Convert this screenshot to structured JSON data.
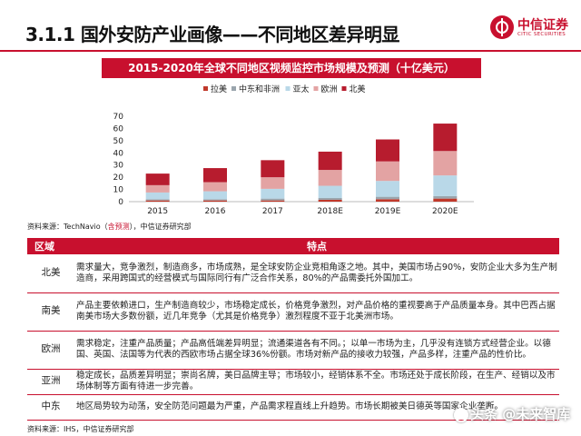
{
  "header": {
    "title": "3.1.1 国外安防产业画像——不同地区差异明显",
    "logo": {
      "name_cn": "中信证券",
      "name_en": "CITIC SECURITIES"
    },
    "accent_color": "#c8102e"
  },
  "chart_banner": "2015-2020年全球不同地区视频监控市场规模及预测（十亿美元）",
  "chart_data": {
    "type": "bar",
    "stacked": true,
    "title": "2015-2020年全球不同地区视频监控市场规模及预测（十亿美元）",
    "categories": [
      "2015",
      "2016",
      "2017",
      "2018E",
      "2019E",
      "2020E"
    ],
    "series": [
      {
        "name": "拉美",
        "color": "#c0392b",
        "values": [
          1,
          1,
          1,
          1.5,
          2,
          2.5
        ]
      },
      {
        "name": "中东和非洲",
        "color": "#9aa5ad",
        "values": [
          1,
          1,
          1.5,
          1.5,
          2,
          2
        ]
      },
      {
        "name": "亚太",
        "color": "#b9d8e8",
        "values": [
          5.5,
          6.5,
          8,
          10,
          13,
          17
        ]
      },
      {
        "name": "欧洲",
        "color": "#e3a3a3",
        "values": [
          6,
          7.5,
          9.5,
          13,
          16,
          20
        ]
      },
      {
        "name": "北美",
        "color": "#b71c2e",
        "values": [
          9.5,
          11.5,
          14,
          15,
          18,
          22.5
        ]
      }
    ],
    "yticks": [
      0,
      10,
      20,
      30,
      40,
      50,
      60,
      70
    ],
    "ylim": [
      0,
      70
    ],
    "legend": "top-left",
    "grid": false
  },
  "source1": {
    "prefix": "资料来源：TechNavio（",
    "highlight": "含预测",
    "suffix": "），中信证券研究部"
  },
  "table": {
    "headers": [
      "区域",
      "特点"
    ],
    "rows": [
      {
        "region": "北美",
        "text": "需求量大，竞争激烈，制造商多，市场成熟，是全球安防企业竞相角逐之地。其中，美国市场占90%，安防企业大多为生产制造商，采用跨国式的经营模式与国际同行有广泛合作关系，80%的产品需委托外国加工。"
      },
      {
        "region": "南美",
        "text": "产品主要依赖进口，生产制造商较少，市场稳定成长，价格竞争激烈，对产品价格的重视要高于产品质量本身。其中巴西占据南美市场大多数份额，近几年竞争（尤其是价格竞争）激烈程度不亚于北美洲市场。"
      },
      {
        "region": "欧洲",
        "text": "需求稳定，注重产品质量；产品高低端差异明显；流通渠道各有不同。；以单一市场为主，几乎没有连锁方式经营企业。以德国、英国、法国等为代表的西欧市场占据全球36%份额。市场对新产品的接收力较强，产品多样，注重产品的性价比。"
      },
      {
        "region": "亚洲",
        "text": "稳定成长，品质差异明显；崇尚名牌，美日品牌主导；市场较小，经销体系不全。市场还处于成长阶段，在生产、经销以及市场体制等方面有待进一步完善。"
      },
      {
        "region": "中东",
        "text": "地区局势较为动荡，安全防范问题最为严重，产品需求程直线上升趋势。市场长期被美日德英等国家企业垄断。"
      }
    ]
  },
  "source2": "资料来源：IHS，中信证券研究部",
  "watermark": "头条 @未来智库"
}
